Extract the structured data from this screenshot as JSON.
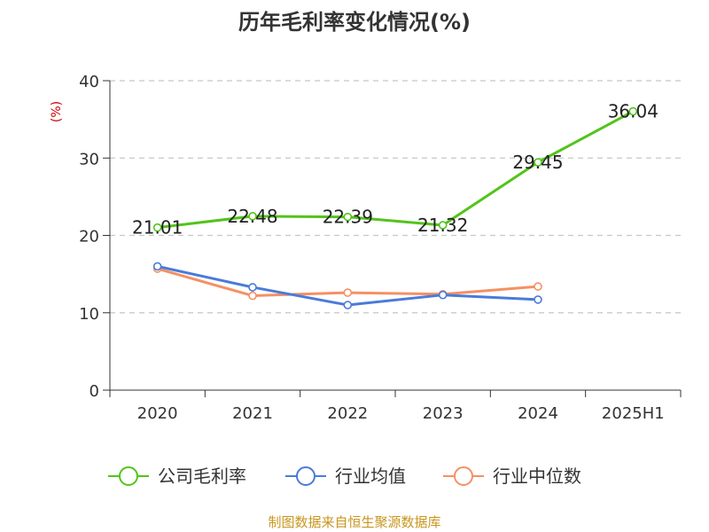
{
  "chart_data": {
    "type": "line",
    "title": "历年毛利率变化情况(%)",
    "ylabel": "(%)",
    "xlabel": "",
    "categories": [
      "2020",
      "2021",
      "2022",
      "2023",
      "2024",
      "2025H1"
    ],
    "ylim": [
      0,
      40
    ],
    "yticks": [
      0,
      10,
      20,
      30,
      40
    ],
    "grid": true,
    "legend_position": "bottom",
    "series": [
      {
        "name": "公司毛利率",
        "color": "#52c41a",
        "values": [
          21.01,
          22.48,
          22.39,
          21.32,
          29.45,
          36.04
        ],
        "labels": [
          "21.01",
          "22.48",
          "22.39",
          "21.32",
          "29.45",
          "36.04"
        ]
      },
      {
        "name": "行业均值",
        "color": "#4a7bd8",
        "values": [
          16.0,
          13.3,
          11.0,
          12.3,
          11.7,
          null
        ]
      },
      {
        "name": "行业中位数",
        "color": "#f59064",
        "values": [
          15.7,
          12.2,
          12.6,
          12.4,
          13.4,
          null
        ]
      }
    ]
  },
  "source": "制图数据来自恒生聚源数据库"
}
